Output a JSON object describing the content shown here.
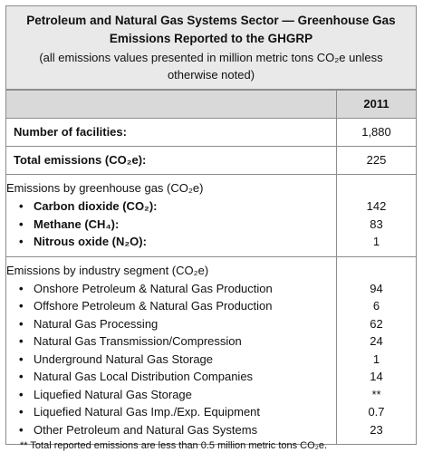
{
  "header": {
    "title": "Petroleum and Natural Gas Systems Sector — Greenhouse Gas Emissions Reported to the GHGRP",
    "subtitle": "(all emissions values presented in million metric tons CO₂e unless otherwise noted)"
  },
  "table": {
    "year": "2011",
    "rows": [
      {
        "label": "Number of facilities:",
        "value": "1,880"
      },
      {
        "label": "Total emissions (CO₂e):",
        "value": "225"
      }
    ],
    "groups": [
      {
        "heading": "Emissions by greenhouse gas (CO₂e)",
        "bold_items": true,
        "items": [
          {
            "label": "Carbon dioxide (CO₂):",
            "value": "142"
          },
          {
            "label": "Methane (CH₄):",
            "value": "83"
          },
          {
            "label": "Nitrous oxide (N₂O):",
            "value": "1"
          }
        ]
      },
      {
        "heading": "Emissions by industry segment (CO₂e)",
        "bold_items": false,
        "items": [
          {
            "label": "Onshore Petroleum & Natural Gas Production",
            "value": "94"
          },
          {
            "label": "Offshore Petroleum & Natural Gas Production",
            "value": "6"
          },
          {
            "label": "Natural Gas Processing",
            "value": "62"
          },
          {
            "label": "Natural Gas Transmission/Compression",
            "value": "24"
          },
          {
            "label": "Underground Natural Gas Storage",
            "value": "1"
          },
          {
            "label": "Natural Gas Local Distribution Companies",
            "value": "14"
          },
          {
            "label": "Liquefied Natural Gas Storage",
            "value": "**"
          },
          {
            "label": "Liquefied Natural Gas Imp./Exp. Equipment",
            "value": "0.7"
          },
          {
            "label": "Other Petroleum and Natural Gas Systems",
            "value": "23"
          }
        ]
      }
    ]
  },
  "footnote": "** Total reported emissions are less than 0.5 million metric tons CO₂e."
}
